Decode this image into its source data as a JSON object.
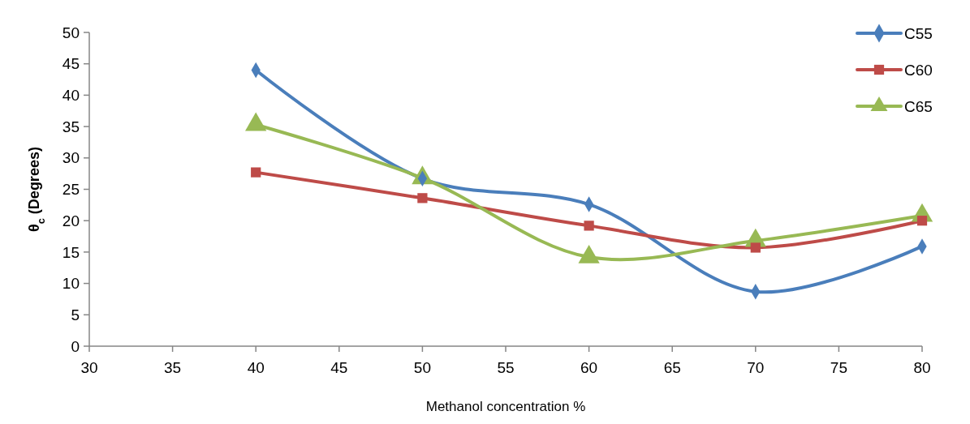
{
  "chart_data": {
    "type": "line",
    "xlabel": "Methanol concentration %",
    "ylabel": "θ$_{c}$ (Degrees)",
    "x": [
      40,
      50,
      60,
      70,
      80
    ],
    "series": [
      {
        "name": "C55",
        "color": "#4a7ebb",
        "marker": "diamond",
        "values": [
          44.0,
          26.7,
          22.6,
          8.7,
          15.9
        ]
      },
      {
        "name": "C60",
        "color": "#be4b48",
        "marker": "square",
        "values": [
          27.7,
          23.6,
          19.2,
          15.7,
          20.0
        ]
      },
      {
        "name": "C65",
        "color": "#98b954",
        "marker": "triangle",
        "values": [
          35.3,
          26.8,
          14.2,
          16.8,
          20.8
        ]
      }
    ],
    "xlim": [
      30,
      80
    ],
    "xticks": [
      30,
      35,
      40,
      45,
      50,
      55,
      60,
      65,
      70,
      75,
      80
    ],
    "ylim": [
      0,
      50
    ],
    "yticks": [
      0,
      5,
      10,
      15,
      20,
      25,
      30,
      35,
      40,
      45,
      50
    ],
    "grid": false,
    "legend": "top right"
  }
}
